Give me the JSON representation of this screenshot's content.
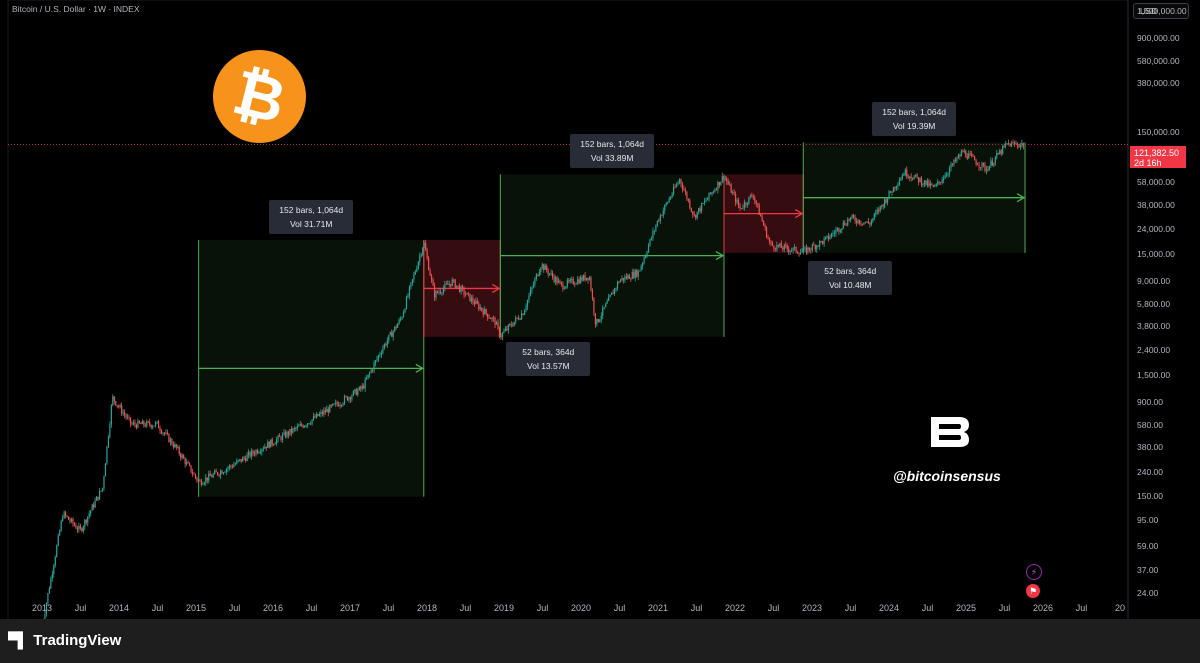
{
  "header": {
    "title": "Bitcoin / U.S. Dollar · 1W · INDEX",
    "currency": "USD"
  },
  "price_tag": {
    "price": "121,382.50",
    "countdown": "2d 16h"
  },
  "watermark": {
    "handle": "@bitcoinsensus"
  },
  "footer": {
    "brand": "TradingView"
  },
  "colors": {
    "up": "#26a69a",
    "down": "#ef5350",
    "green_zone": "#4caf50",
    "red_zone": "#f23645",
    "bitcoin_orange": "#f7931a"
  },
  "chart_data": {
    "type": "candlestick",
    "y_scale": "log",
    "y_ticks": [
      "1,500,000.00",
      "900,000.00",
      "580,000.00",
      "380,000.00",
      "150,000.00",
      "58,000.00",
      "38,000.00",
      "24,000.00",
      "15,000.00",
      "9,000.00",
      "5,800.00",
      "3,800.00",
      "2,400.00",
      "1,500.00",
      "900.00",
      "580.00",
      "380.00",
      "240.00",
      "150.00",
      "95.00",
      "59.00",
      "37.00",
      "24.00"
    ],
    "y_tick_values": [
      1500000,
      900000,
      580000,
      380000,
      150000,
      58000,
      38000,
      24000,
      15000,
      9000,
      5800,
      3800,
      2400,
      1500,
      900,
      580,
      380,
      240,
      150,
      95,
      59,
      37,
      24
    ],
    "x_ticks": [
      "2013",
      "Jul",
      "2014",
      "Jul",
      "2015",
      "Jul",
      "2016",
      "Jul",
      "2017",
      "Jul",
      "2018",
      "Jul",
      "2019",
      "Jul",
      "2020",
      "Jul",
      "2021",
      "Jul",
      "2022",
      "Jul",
      "2023",
      "Jul",
      "2024",
      "Jul",
      "2025",
      "Jul",
      "2026",
      "Jul",
      "20"
    ],
    "price_path": [
      [
        "2013-01-01",
        13
      ],
      [
        "2013-04-10",
        110
      ],
      [
        "2013-07-01",
        80
      ],
      [
        "2013-10-15",
        180
      ],
      [
        "2013-12-01",
        1000
      ],
      [
        "2014-03-01",
        600
      ],
      [
        "2014-07-01",
        600
      ],
      [
        "2014-10-01",
        380
      ],
      [
        "2015-01-15",
        200
      ],
      [
        "2015-07-01",
        280
      ],
      [
        "2015-11-01",
        380
      ],
      [
        "2016-01-01",
        430
      ],
      [
        "2016-07-01",
        650
      ],
      [
        "2016-12-01",
        950
      ],
      [
        "2017-03-01",
        1200
      ],
      [
        "2017-06-01",
        2500
      ],
      [
        "2017-09-01",
        4500
      ],
      [
        "2017-12-17",
        19000
      ],
      [
        "2018-02-05",
        7000
      ],
      [
        "2018-05-01",
        9000
      ],
      [
        "2018-11-20",
        4200
      ],
      [
        "2018-12-15",
        3200
      ],
      [
        "2019-04-01",
        5000
      ],
      [
        "2019-06-26",
        12500
      ],
      [
        "2019-10-01",
        8300
      ],
      [
        "2020-02-10",
        10000
      ],
      [
        "2020-03-12",
        4000
      ],
      [
        "2020-07-01",
        9200
      ],
      [
        "2020-10-01",
        10800
      ],
      [
        "2021-01-01",
        29000
      ],
      [
        "2021-04-14",
        63000
      ],
      [
        "2021-06-22",
        31000
      ],
      [
        "2021-11-10",
        67000
      ],
      [
        "2022-01-24",
        36000
      ],
      [
        "2022-03-28",
        47000
      ],
      [
        "2022-06-18",
        18000
      ],
      [
        "2022-11-21",
        15800
      ],
      [
        "2023-03-10",
        20000
      ],
      [
        "2023-07-01",
        30000
      ],
      [
        "2023-10-01",
        27000
      ],
      [
        "2024-03-14",
        72000
      ],
      [
        "2024-08-05",
        53000
      ],
      [
        "2024-12-17",
        106000
      ],
      [
        "2025-04-07",
        76000
      ],
      [
        "2025-07-14",
        122000
      ],
      [
        "2025-10-01",
        121382.5
      ]
    ],
    "last_price": 121382.5,
    "annotations": [
      {
        "kind": "bull",
        "start": "2015-01-14",
        "end": "2017-12-17",
        "low": 152,
        "high": 19800,
        "bars": "152 bars, 1,064d",
        "vol": "Vol 31.71M"
      },
      {
        "kind": "bear",
        "start": "2017-12-17",
        "end": "2018-12-15",
        "low": 3150,
        "high": 19800,
        "bars": "52 bars, 364d",
        "vol": "Vol 13.57M"
      },
      {
        "kind": "bull",
        "start": "2018-12-15",
        "end": "2021-11-10",
        "low": 3150,
        "high": 68800,
        "bars": "152 bars, 1,064d",
        "vol": "Vol 33.89M"
      },
      {
        "kind": "bear",
        "start": "2021-11-10",
        "end": "2022-11-21",
        "low": 15500,
        "high": 68800,
        "bars": "52 bars, 364d",
        "vol": "Vol 10.48M"
      },
      {
        "kind": "bull",
        "start": "2022-11-21",
        "end": "2025-10-08",
        "low": 15500,
        "high": 126000,
        "bars": "152 bars, 1,064d",
        "vol": "Vol 19.39M"
      }
    ]
  }
}
